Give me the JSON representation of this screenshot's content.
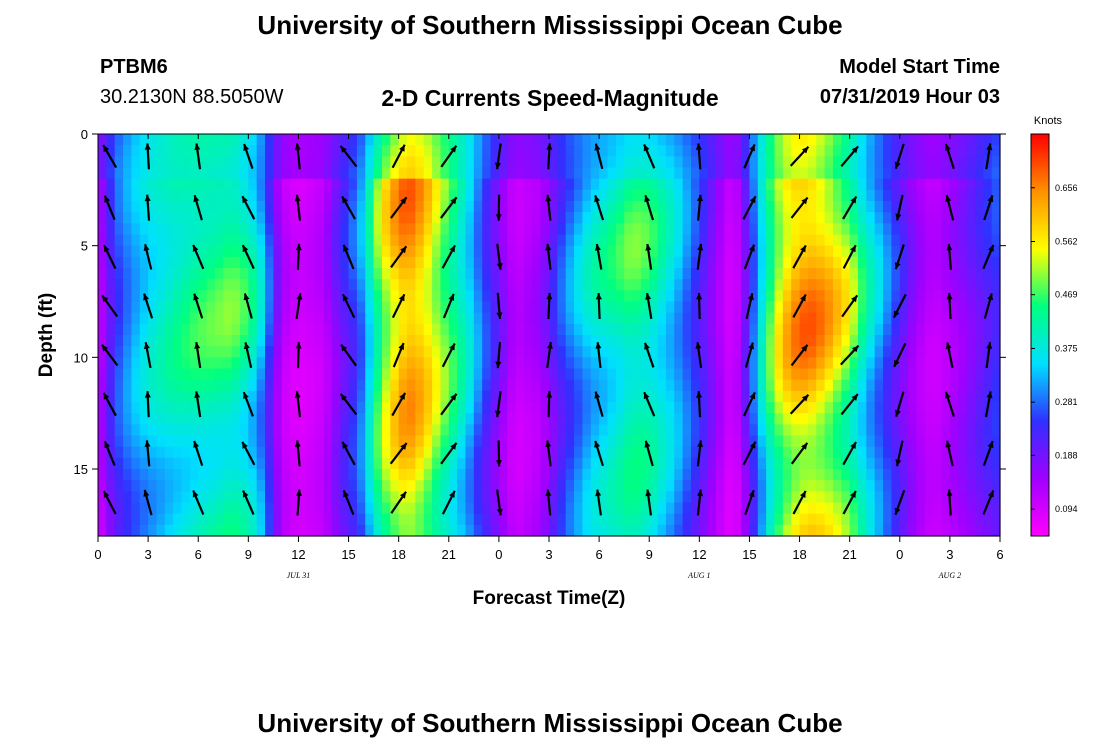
{
  "header": {
    "title": "University of Southern Mississippi Ocean Cube",
    "station_id": "PTBM6",
    "station_coords": "30.2130N 88.5050W",
    "start_label": "Model Start Time",
    "start_value": "07/31/2019 Hour 03"
  },
  "footer": {
    "title": "University of Southern Mississippi Ocean Cube"
  },
  "chart_data": {
    "type": "heatmap",
    "title": "2-D Currents Speed-Magnitude",
    "xlabel": "Forecast Time(Z)",
    "ylabel": "Depth (ft)",
    "x_hours": [
      0,
      54
    ],
    "y_depth": [
      0,
      18
    ],
    "x_tick_hours": [
      0,
      3,
      6,
      9,
      12,
      15,
      18,
      21,
      24,
      27,
      30,
      33,
      36,
      39,
      42,
      45,
      48,
      51,
      54
    ],
    "x_tick_labels": [
      "0",
      "3",
      "6",
      "9",
      "12",
      "15",
      "18",
      "21",
      "0",
      "3",
      "6",
      "9",
      "12",
      "15",
      "18",
      "21",
      "0",
      "3",
      "6"
    ],
    "y_ticks": [
      0,
      5,
      10,
      15
    ],
    "y_tick_labels": [
      "0",
      "5",
      "10",
      "15"
    ],
    "date_labels": [
      {
        "text": "JUL 31",
        "hour": 12
      },
      {
        "text": "AUG 1",
        "hour": 36
      },
      {
        "text": "AUG 2",
        "hour": 51
      }
    ],
    "colorbar": {
      "unit": "Knots",
      "ticks": [
        0.094,
        0.188,
        0.281,
        0.375,
        0.469,
        0.562,
        0.656
      ],
      "tick_labels": [
        "0.094",
        "0.188",
        "0.281",
        "0.375",
        "0.469",
        "0.562",
        "0.656"
      ],
      "range": [
        0.047,
        0.75
      ],
      "colors": [
        "#ff00ff",
        "#a000ff",
        "#3030ff",
        "#00e0ff",
        "#00ff80",
        "#ffff00",
        "#ff9000",
        "#ff0000"
      ]
    },
    "speed_profile": {
      "hours": [
        0,
        1,
        2,
        3,
        4.5,
        6,
        8,
        9,
        10,
        10.5,
        11,
        12,
        13.5,
        14.5,
        15.5,
        16,
        16.5,
        17.5,
        18.5,
        19.5,
        20.5,
        22,
        23,
        24,
        25,
        26.5,
        28,
        29.5,
        31,
        32,
        33,
        34.5,
        36,
        37.5,
        38,
        38.5,
        39.5,
        40.5,
        41.5,
        42.5,
        43.5,
        45,
        46,
        47.5,
        49,
        50,
        51.5,
        53,
        54
      ],
      "speeds": [
        0.12,
        0.28,
        0.35,
        0.4,
        0.45,
        0.48,
        0.5,
        0.46,
        0.34,
        0.22,
        0.14,
        0.1,
        0.13,
        0.22,
        0.3,
        0.36,
        0.48,
        0.63,
        0.71,
        0.66,
        0.56,
        0.42,
        0.3,
        0.2,
        0.12,
        0.16,
        0.3,
        0.4,
        0.45,
        0.49,
        0.47,
        0.38,
        0.26,
        0.13,
        0.1,
        0.16,
        0.36,
        0.56,
        0.67,
        0.7,
        0.66,
        0.55,
        0.42,
        0.28,
        0.16,
        0.12,
        0.17,
        0.24,
        0.28
      ]
    },
    "vector_directions": {
      "hours": [
        0,
        3,
        6,
        9,
        12,
        15,
        18,
        21,
        24,
        27,
        30,
        33,
        36,
        39,
        42,
        45,
        48,
        51,
        54
      ],
      "angles_deg": [
        -30,
        -10,
        -15,
        -20,
        0,
        -30,
        30,
        30,
        180,
        0,
        -10,
        -15,
        0,
        20,
        35,
        35,
        200,
        -10,
        15
      ]
    }
  }
}
